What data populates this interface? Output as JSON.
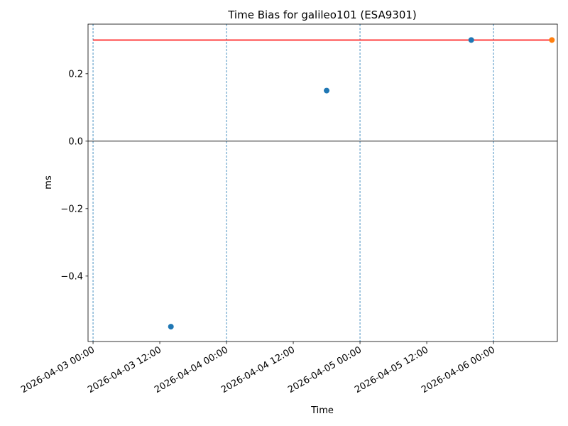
{
  "chart_data": {
    "type": "scatter",
    "title": "Time Bias for galileo101 (ESA9301)",
    "x_label": "Time",
    "y_label": "ms",
    "xlim": [
      "2026-04-02 23:06",
      "2026-04-06 11:29"
    ],
    "xticks": [
      "2026-04-03 00:00",
      "2026-04-03 12:00",
      "2026-04-04 00:00",
      "2026-04-04 12:00",
      "2026-04-05 00:00",
      "2026-04-05 12:00",
      "2026-04-06 00:00"
    ],
    "ylim": [
      -0.594,
      0.347
    ],
    "yticks": [
      {
        "value": -0.4,
        "label": "−0.4"
      },
      {
        "value": -0.2,
        "label": "−0.2"
      },
      {
        "value": 0,
        "label": "0.0"
      },
      0.2
    ],
    "vlines": [
      "2026-04-03 00:00",
      "2026-04-04 00:00",
      "2026-04-05 00:00",
      "2026-04-06 00:00"
    ],
    "vline_color": "#1f77b4",
    "hlines": [
      0
    ],
    "hline_color": "#000000",
    "series": [
      {
        "style": "line",
        "color": "#ff0000",
        "x": [
          "2026-04-03 00:00",
          "2026-04-06 10:30"
        ],
        "values": [
          0.3,
          0.3
        ]
      },
      {
        "style": "markers",
        "color": "#1f77b4",
        "x": [
          "2026-04-03 14:00",
          "2026-04-04 18:00",
          "2026-04-05 20:00"
        ],
        "values": [
          -0.55,
          0.15,
          0.3
        ]
      },
      {
        "style": "markers",
        "color": "#ff7f0e",
        "x": [
          "2026-04-06 10:30"
        ],
        "values": [
          0.3
        ]
      }
    ]
  }
}
